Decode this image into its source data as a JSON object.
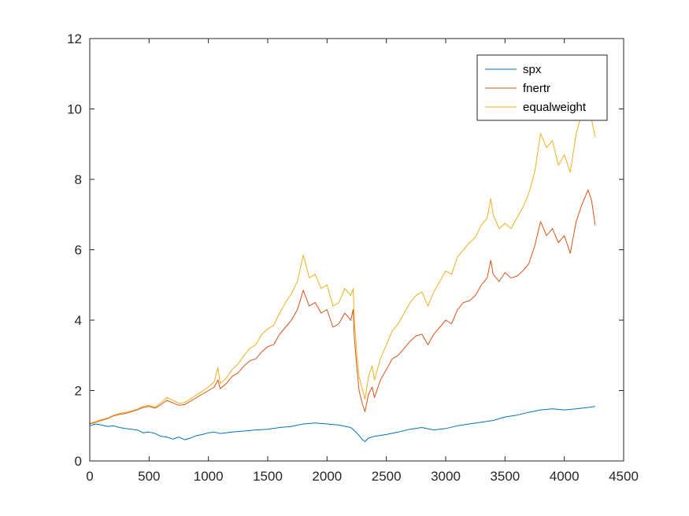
{
  "chart_data": {
    "type": "line",
    "xlim": [
      0,
      4500
    ],
    "ylim": [
      0,
      12
    ],
    "xticks": [
      0,
      500,
      1000,
      1500,
      2000,
      2500,
      3000,
      3500,
      4000,
      4500
    ],
    "yticks": [
      0,
      2,
      4,
      6,
      8,
      10,
      12
    ],
    "grid": false,
    "legend_position": "top-right",
    "series": [
      {
        "name": "spx",
        "color": "#0072BD",
        "points": [
          [
            0,
            1.0
          ],
          [
            50,
            1.05
          ],
          [
            100,
            1.02
          ],
          [
            150,
            0.98
          ],
          [
            200,
            1.0
          ],
          [
            250,
            0.95
          ],
          [
            300,
            0.92
          ],
          [
            350,
            0.9
          ],
          [
            400,
            0.88
          ],
          [
            450,
            0.8
          ],
          [
            500,
            0.82
          ],
          [
            550,
            0.78
          ],
          [
            600,
            0.7
          ],
          [
            650,
            0.68
          ],
          [
            700,
            0.62
          ],
          [
            750,
            0.68
          ],
          [
            800,
            0.6
          ],
          [
            850,
            0.65
          ],
          [
            900,
            0.72
          ],
          [
            950,
            0.75
          ],
          [
            1000,
            0.8
          ],
          [
            1050,
            0.82
          ],
          [
            1100,
            0.78
          ],
          [
            1150,
            0.8
          ],
          [
            1200,
            0.82
          ],
          [
            1300,
            0.85
          ],
          [
            1400,
            0.88
          ],
          [
            1500,
            0.9
          ],
          [
            1600,
            0.95
          ],
          [
            1700,
            0.98
          ],
          [
            1800,
            1.05
          ],
          [
            1900,
            1.08
          ],
          [
            2000,
            1.05
          ],
          [
            2100,
            1.02
          ],
          [
            2200,
            0.95
          ],
          [
            2250,
            0.8
          ],
          [
            2300,
            0.6
          ],
          [
            2320,
            0.55
          ],
          [
            2350,
            0.65
          ],
          [
            2400,
            0.7
          ],
          [
            2500,
            0.75
          ],
          [
            2600,
            0.82
          ],
          [
            2700,
            0.9
          ],
          [
            2800,
            0.95
          ],
          [
            2900,
            0.88
          ],
          [
            3000,
            0.92
          ],
          [
            3100,
            1.0
          ],
          [
            3200,
            1.05
          ],
          [
            3300,
            1.1
          ],
          [
            3400,
            1.15
          ],
          [
            3500,
            1.25
          ],
          [
            3600,
            1.3
          ],
          [
            3700,
            1.38
          ],
          [
            3800,
            1.45
          ],
          [
            3900,
            1.48
          ],
          [
            4000,
            1.45
          ],
          [
            4100,
            1.48
          ],
          [
            4200,
            1.52
          ],
          [
            4260,
            1.55
          ]
        ]
      },
      {
        "name": "fnertr",
        "color": "#D95319",
        "points": [
          [
            0,
            1.05
          ],
          [
            50,
            1.1
          ],
          [
            100,
            1.15
          ],
          [
            150,
            1.2
          ],
          [
            200,
            1.28
          ],
          [
            250,
            1.32
          ],
          [
            300,
            1.35
          ],
          [
            350,
            1.4
          ],
          [
            400,
            1.45
          ],
          [
            450,
            1.52
          ],
          [
            500,
            1.55
          ],
          [
            550,
            1.5
          ],
          [
            600,
            1.6
          ],
          [
            650,
            1.72
          ],
          [
            700,
            1.65
          ],
          [
            750,
            1.58
          ],
          [
            800,
            1.6
          ],
          [
            850,
            1.7
          ],
          [
            900,
            1.8
          ],
          [
            950,
            1.9
          ],
          [
            1000,
            2.0
          ],
          [
            1050,
            2.1
          ],
          [
            1080,
            2.3
          ],
          [
            1100,
            2.05
          ],
          [
            1150,
            2.2
          ],
          [
            1200,
            2.4
          ],
          [
            1250,
            2.5
          ],
          [
            1300,
            2.7
          ],
          [
            1350,
            2.85
          ],
          [
            1400,
            2.9
          ],
          [
            1450,
            3.1
          ],
          [
            1500,
            3.25
          ],
          [
            1550,
            3.3
          ],
          [
            1600,
            3.6
          ],
          [
            1650,
            3.8
          ],
          [
            1700,
            4.0
          ],
          [
            1750,
            4.3
          ],
          [
            1800,
            4.85
          ],
          [
            1850,
            4.4
          ],
          [
            1900,
            4.5
          ],
          [
            1950,
            4.2
          ],
          [
            2000,
            4.3
          ],
          [
            2050,
            3.8
          ],
          [
            2100,
            3.9
          ],
          [
            2150,
            4.2
          ],
          [
            2200,
            4.0
          ],
          [
            2220,
            4.3
          ],
          [
            2230,
            3.5
          ],
          [
            2250,
            2.7
          ],
          [
            2270,
            2.0
          ],
          [
            2300,
            1.6
          ],
          [
            2320,
            1.4
          ],
          [
            2350,
            1.9
          ],
          [
            2380,
            2.1
          ],
          [
            2400,
            1.8
          ],
          [
            2450,
            2.3
          ],
          [
            2500,
            2.6
          ],
          [
            2550,
            2.9
          ],
          [
            2600,
            3.0
          ],
          [
            2650,
            3.2
          ],
          [
            2700,
            3.4
          ],
          [
            2750,
            3.55
          ],
          [
            2800,
            3.6
          ],
          [
            2850,
            3.3
          ],
          [
            2900,
            3.6
          ],
          [
            2950,
            3.8
          ],
          [
            3000,
            4.0
          ],
          [
            3050,
            3.9
          ],
          [
            3100,
            4.3
          ],
          [
            3150,
            4.5
          ],
          [
            3200,
            4.55
          ],
          [
            3250,
            4.7
          ],
          [
            3300,
            5.0
          ],
          [
            3350,
            5.2
          ],
          [
            3380,
            5.7
          ],
          [
            3400,
            5.3
          ],
          [
            3450,
            5.1
          ],
          [
            3500,
            5.35
          ],
          [
            3550,
            5.2
          ],
          [
            3600,
            5.25
          ],
          [
            3650,
            5.4
          ],
          [
            3700,
            5.6
          ],
          [
            3750,
            6.1
          ],
          [
            3800,
            6.8
          ],
          [
            3850,
            6.4
          ],
          [
            3900,
            6.6
          ],
          [
            3950,
            6.2
          ],
          [
            4000,
            6.4
          ],
          [
            4050,
            5.9
          ],
          [
            4100,
            6.8
          ],
          [
            4150,
            7.3
          ],
          [
            4200,
            7.7
          ],
          [
            4230,
            7.4
          ],
          [
            4260,
            6.7
          ]
        ]
      },
      {
        "name": "equalweight",
        "color": "#EDB120",
        "points": [
          [
            0,
            1.07
          ],
          [
            50,
            1.12
          ],
          [
            100,
            1.18
          ],
          [
            150,
            1.22
          ],
          [
            200,
            1.3
          ],
          [
            250,
            1.35
          ],
          [
            300,
            1.38
          ],
          [
            350,
            1.42
          ],
          [
            400,
            1.47
          ],
          [
            450,
            1.55
          ],
          [
            500,
            1.58
          ],
          [
            550,
            1.53
          ],
          [
            600,
            1.65
          ],
          [
            650,
            1.8
          ],
          [
            700,
            1.72
          ],
          [
            750,
            1.64
          ],
          [
            800,
            1.66
          ],
          [
            850,
            1.76
          ],
          [
            900,
            1.88
          ],
          [
            950,
            1.98
          ],
          [
            1000,
            2.1
          ],
          [
            1050,
            2.25
          ],
          [
            1080,
            2.65
          ],
          [
            1100,
            2.2
          ],
          [
            1150,
            2.35
          ],
          [
            1200,
            2.6
          ],
          [
            1250,
            2.75
          ],
          [
            1300,
            3.0
          ],
          [
            1350,
            3.2
          ],
          [
            1400,
            3.3
          ],
          [
            1450,
            3.6
          ],
          [
            1500,
            3.75
          ],
          [
            1550,
            3.85
          ],
          [
            1600,
            4.2
          ],
          [
            1650,
            4.5
          ],
          [
            1700,
            4.75
          ],
          [
            1750,
            5.1
          ],
          [
            1800,
            5.85
          ],
          [
            1850,
            5.2
          ],
          [
            1900,
            5.3
          ],
          [
            1950,
            4.9
          ],
          [
            2000,
            5.0
          ],
          [
            2050,
            4.4
          ],
          [
            2100,
            4.5
          ],
          [
            2150,
            4.9
          ],
          [
            2200,
            4.7
          ],
          [
            2220,
            4.9
          ],
          [
            2230,
            4.0
          ],
          [
            2250,
            3.1
          ],
          [
            2270,
            2.4
          ],
          [
            2300,
            2.0
          ],
          [
            2320,
            1.75
          ],
          [
            2350,
            2.4
          ],
          [
            2380,
            2.7
          ],
          [
            2400,
            2.3
          ],
          [
            2450,
            2.9
          ],
          [
            2500,
            3.3
          ],
          [
            2550,
            3.7
          ],
          [
            2600,
            3.9
          ],
          [
            2650,
            4.2
          ],
          [
            2700,
            4.5
          ],
          [
            2750,
            4.7
          ],
          [
            2800,
            4.8
          ],
          [
            2850,
            4.4
          ],
          [
            2900,
            4.8
          ],
          [
            2950,
            5.1
          ],
          [
            3000,
            5.4
          ],
          [
            3050,
            5.3
          ],
          [
            3100,
            5.8
          ],
          [
            3150,
            6.0
          ],
          [
            3200,
            6.2
          ],
          [
            3250,
            6.35
          ],
          [
            3300,
            6.7
          ],
          [
            3350,
            6.9
          ],
          [
            3380,
            7.45
          ],
          [
            3400,
            7.0
          ],
          [
            3450,
            6.6
          ],
          [
            3500,
            6.75
          ],
          [
            3550,
            6.6
          ],
          [
            3600,
            6.9
          ],
          [
            3650,
            7.2
          ],
          [
            3700,
            7.6
          ],
          [
            3750,
            8.2
          ],
          [
            3800,
            9.3
          ],
          [
            3850,
            8.9
          ],
          [
            3900,
            9.1
          ],
          [
            3950,
            8.4
          ],
          [
            4000,
            8.7
          ],
          [
            4050,
            8.2
          ],
          [
            4100,
            9.3
          ],
          [
            4150,
            9.9
          ],
          [
            4200,
            10.0
          ],
          [
            4230,
            9.7
          ],
          [
            4260,
            9.2
          ]
        ]
      }
    ]
  }
}
